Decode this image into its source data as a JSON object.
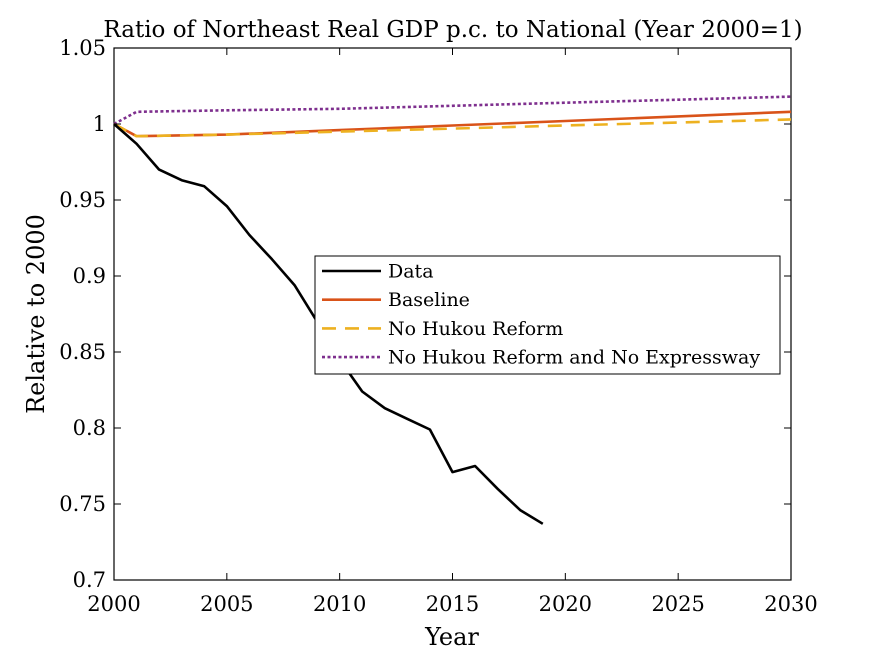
{
  "chart_data": {
    "type": "line",
    "title": "Ratio of Northeast Real GDP p.c. to National (Year 2000=1)",
    "xlabel": "Year",
    "ylabel": "Relative to 2000",
    "xlim": [
      2000,
      2030
    ],
    "ylim": [
      0.7,
      1.05
    ],
    "xticks": [
      2000,
      2005,
      2010,
      2015,
      2020,
      2025,
      2030
    ],
    "xtick_labels": [
      "2000",
      "2005",
      "2010",
      "2015",
      "2020",
      "2025",
      "2030"
    ],
    "yticks": [
      0.7,
      0.75,
      0.8,
      0.85,
      0.9,
      0.95,
      1,
      1.05
    ],
    "ytick_labels": [
      "0.7",
      "0.75",
      "0.8",
      "0.85",
      "0.9",
      "0.95",
      "1",
      "1.05"
    ],
    "grid": false,
    "legend_position": "center-right",
    "series": [
      {
        "name": "Data",
        "color": "#000000",
        "dash": "solid",
        "x": [
          2000,
          2001,
          2002,
          2003,
          2004,
          2005,
          2006,
          2007,
          2008,
          2009,
          2010,
          2011,
          2012,
          2013,
          2014,
          2015,
          2016,
          2017,
          2018,
          2019
        ],
        "y": [
          1.0,
          0.987,
          0.97,
          0.963,
          0.959,
          0.946,
          0.927,
          0.911,
          0.894,
          0.87,
          0.845,
          0.824,
          0.813,
          0.806,
          0.799,
          0.771,
          0.775,
          0.76,
          0.746,
          0.737
        ]
      },
      {
        "name": "Baseline",
        "color": "#d95319",
        "dash": "solid",
        "x": [
          2000,
          2001,
          2005,
          2010,
          2015,
          2020,
          2025,
          2030
        ],
        "y": [
          1.0,
          0.992,
          0.993,
          0.996,
          0.999,
          1.002,
          1.005,
          1.008
        ]
      },
      {
        "name": "No Hukou Reform",
        "color": "#edb120",
        "dash": "dashed",
        "x": [
          2000,
          2001,
          2005,
          2010,
          2015,
          2020,
          2025,
          2030
        ],
        "y": [
          1.0,
          0.992,
          0.993,
          0.995,
          0.997,
          0.999,
          1.001,
          1.003
        ]
      },
      {
        "name": "No Hukou Reform and No Expressway",
        "color": "#7e2f8e",
        "dash": "dotted",
        "x": [
          2000,
          2001,
          2005,
          2010,
          2015,
          2020,
          2025,
          2030
        ],
        "y": [
          1.0,
          1.008,
          1.009,
          1.01,
          1.012,
          1.014,
          1.016,
          1.018
        ]
      }
    ]
  }
}
